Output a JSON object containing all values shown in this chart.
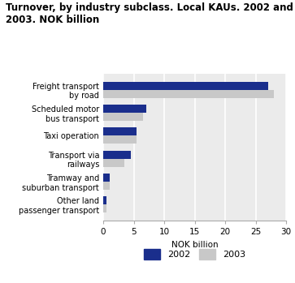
{
  "title": "Turnover, by industry subclass. Local KAUs. 2002 and\n2003. NOK billion",
  "categories": [
    "Other land\npassenger transport",
    "Tramway and\nsuburban transport",
    "Transport via\nrailways",
    "Taxi operation",
    "Scheduled motor\nbus transport",
    "Freight transport\nby road"
  ],
  "values_2002": [
    0.5,
    1.0,
    4.5,
    5.5,
    7.0,
    27.0
  ],
  "values_2003": [
    0.5,
    1.0,
    3.5,
    5.5,
    6.5,
    28.0
  ],
  "color_2002": "#1a2e8c",
  "color_2003": "#c8c8c8",
  "xlabel": "NOK billion",
  "xlim": [
    0,
    30
  ],
  "xticks": [
    0,
    5,
    10,
    15,
    20,
    25,
    30
  ],
  "legend_labels": [
    "2002",
    "2003"
  ],
  "bar_height": 0.35,
  "background_color": "#ebebeb"
}
